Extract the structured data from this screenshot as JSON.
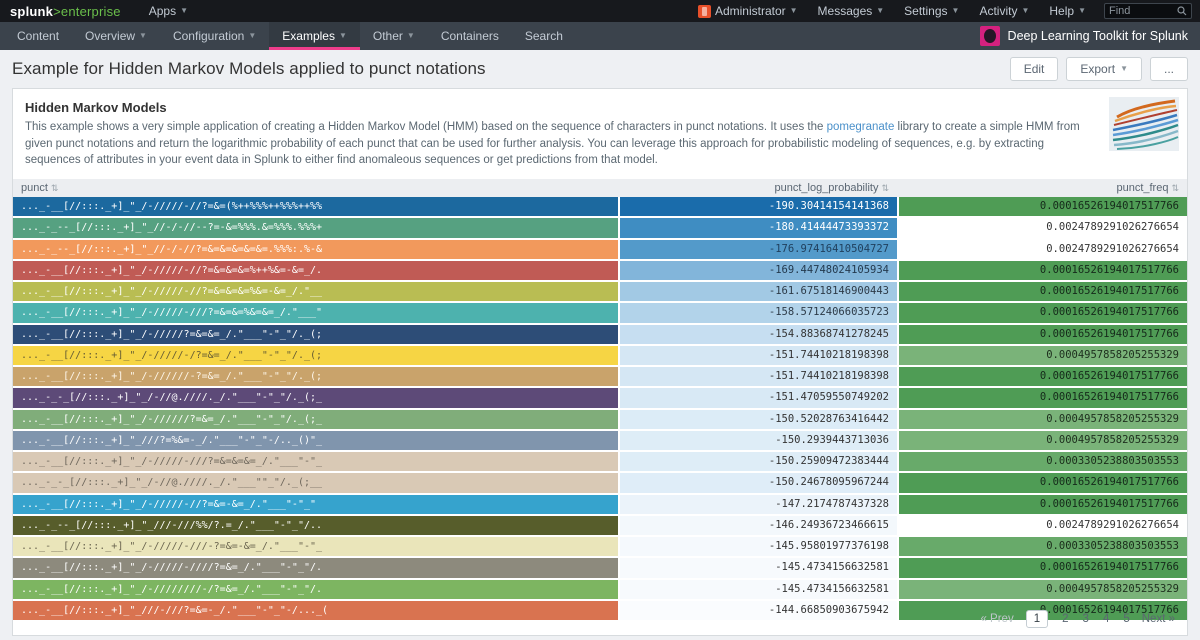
{
  "colors": {
    "accent_active_tab": "#ee3d8b",
    "logo_green": "#6abf4b",
    "link_blue": "#4a90ca",
    "topbar_bg": "#17191d",
    "appbar_bg": "#3b434c"
  },
  "topbar": {
    "logo_main": "splunk",
    "logo_sub": ">enterprise",
    "apps_label": "Apps",
    "menus": [
      {
        "label": "Administrator",
        "caret": true,
        "avatar": true
      },
      {
        "label": "Messages",
        "caret": true
      },
      {
        "label": "Settings",
        "caret": true
      },
      {
        "label": "Activity",
        "caret": true
      },
      {
        "label": "Help",
        "caret": true
      }
    ],
    "find_placeholder": "Find"
  },
  "appbar": {
    "items": [
      {
        "label": "Content",
        "caret": false,
        "active": false
      },
      {
        "label": "Overview",
        "caret": true,
        "active": false
      },
      {
        "label": "Configuration",
        "caret": true,
        "active": false
      },
      {
        "label": "Examples",
        "caret": true,
        "active": true
      },
      {
        "label": "Other",
        "caret": true,
        "active": false
      },
      {
        "label": "Containers",
        "caret": false,
        "active": false
      },
      {
        "label": "Search",
        "caret": false,
        "active": false
      }
    ],
    "app_title": "Deep Learning Toolkit for Splunk"
  },
  "pageheader": {
    "title": "Example for Hidden Markov Models applied to punct notations",
    "buttons": {
      "edit": "Edit",
      "export": "Export",
      "more": "..."
    }
  },
  "panel": {
    "heading": "Hidden Markov Models",
    "description_before_link": "This example shows a very simple application of creating a Hidden Markov Model (HMM) based on the sequence of characters in punct notations. It uses the ",
    "description_link": "pomegranate",
    "description_after_link": " library to create a simple HMM from given punct notations and return the logarithmic probability of each punct that can be used for further analysis. You can leverage this approach for probabilistic modeling of sequences, e.g. by extracting sequences of attributes in your event data in Splunk to either find anomaleous sequences or get predictions from that model."
  },
  "table": {
    "headers": [
      {
        "label": "punct",
        "sort_icon": "⇅"
      },
      {
        "label": "punct_log_probability",
        "sort_icon": "⇅"
      },
      {
        "label": "punct_freq",
        "sort_icon": "⇅"
      }
    ],
    "rows": [
      {
        "punct": "..._-__[//:::._+]_\"_/-/////-//?=&=(%++%%%++%%%++%%",
        "punct_bg": "#1c699f",
        "punct_fg": "#ffffff",
        "log_prob": "-190.30414154141368",
        "log_bg": "#1a6cab",
        "log_fg": "#ffffff",
        "freq": "0.00016526194017517766",
        "freq_bg": "#4f9c55",
        "freq_fg": "#15291a"
      },
      {
        "punct": "..._-_--_[//:::._+]_\"_//-/-//--?=-&=%%%.&=%%%.%%%+",
        "punct_bg": "#56a181",
        "punct_fg": "#ffffff",
        "log_prob": "-180.41444473393372",
        "log_bg": "#3f8dc2",
        "log_fg": "#ffffff",
        "freq": "0.0024789291026276654",
        "freq_bg": "#ffffff",
        "freq_fg": "#333333"
      },
      {
        "punct": "..._-_--_[//:::._+]_\"_//-/-//?=&=&=&=&=&=.%%%:.%-&",
        "punct_bg": "#f2995c",
        "punct_fg": "#ffffff",
        "log_prob": "-176.97416410504727",
        "log_bg": "#539aca",
        "log_fg": "#20405e",
        "freq": "0.0024789291026276654",
        "freq_bg": "#ffffff",
        "freq_fg": "#333333"
      },
      {
        "punct": "..._-__[//:::._+]_\"_/-/////-//?=&=&=&=%++%&=-&=_/.",
        "punct_bg": "#c05b55",
        "punct_fg": "#ffffff",
        "log_prob": "-169.44748024105934",
        "log_bg": "#82b5da",
        "log_fg": "#23394d",
        "freq": "0.00016526194017517766",
        "freq_bg": "#4f9c55",
        "freq_fg": "#15291a"
      },
      {
        "punct": "..._-__[//:::._+]_\"_/-/////-//?=&=&=&=%&=-&=_/.\"__",
        "punct_bg": "#b9bd53",
        "punct_fg": "#ffffff",
        "log_prob": "-161.67518146900443",
        "log_bg": "#a2c9e4",
        "log_fg": "#2c3a47",
        "freq": "0.00016526194017517766",
        "freq_bg": "#4f9c55",
        "freq_fg": "#15291a"
      },
      {
        "punct": "..._-__[//:::._+]_\"_/-/////-///?=&=&=%&=&=_/.\"___\"",
        "punct_bg": "#4db2ae",
        "punct_fg": "#ffffff",
        "log_prob": "-158.57124066035723",
        "log_bg": "#b2d3ea",
        "log_fg": "#2c3a47",
        "freq": "0.00016526194017517766",
        "freq_bg": "#4f9c55",
        "freq_fg": "#15291a"
      },
      {
        "punct": "..._-__[//:::._+]_\"_/-/////?=&=&=_/.\"___\"-\"_\"/._(;",
        "punct_bg": "#2d4d77",
        "punct_fg": "#ffffff",
        "log_prob": "-154.88368741278245",
        "log_bg": "#c6def1",
        "log_fg": "#333333",
        "freq": "0.00016526194017517766",
        "freq_bg": "#4f9c55",
        "freq_fg": "#15291a"
      },
      {
        "punct": "..._-__[//:::._+]_\"_/-/////-/?=&=_/.\"___\"-\"_\"/._(;",
        "punct_bg": "#f6d544",
        "punct_fg": "#665d33",
        "log_prob": "-151.74410218198398",
        "log_bg": "#d5e7f4",
        "log_fg": "#333333",
        "freq": "0.0004957858205255329",
        "freq_bg": "#7ab379",
        "freq_fg": "#1d2e1d"
      },
      {
        "punct": "..._-__[//:::._+]_\"_/-//////-?=&=_/.\"___\"-\"_\"/._(;",
        "punct_bg": "#c9a36b",
        "punct_fg": "#fdf6ea",
        "log_prob": "-151.74410218198398",
        "log_bg": "#d5e7f4",
        "log_fg": "#333333",
        "freq": "0.00016526194017517766",
        "freq_bg": "#4f9c55",
        "freq_fg": "#15291a"
      },
      {
        "punct": "..._-_-_[//:::._+]_\"_/-//@.////._/.\"___\"-\"_\"/._(;_",
        "punct_bg": "#5d4a78",
        "punct_fg": "#ffffff",
        "log_prob": "-151.47059550749202",
        "log_bg": "#d8e9f5",
        "log_fg": "#333333",
        "freq": "0.00016526194017517766",
        "freq_bg": "#4f9c55",
        "freq_fg": "#15291a"
      },
      {
        "punct": "..._-__[//:::._+]_\"_/-//////?=&=_/.\"___\"-\"_\"/._(;_",
        "punct_bg": "#80ad7a",
        "punct_fg": "#ffffff",
        "log_prob": "-150.52028763416442",
        "log_bg": "#dcecf7",
        "log_fg": "#333333",
        "freq": "0.0004957858205255329",
        "freq_bg": "#7ab379",
        "freq_fg": "#1d2e1d"
      },
      {
        "punct": "..._-__[//:::._+]_\"_///?=%&=-_/.\"___\"-\"_\"-/.._()\"_",
        "punct_bg": "#8095ad",
        "punct_fg": "#ffffff",
        "log_prob": "-150.2939443713036",
        "log_bg": "#deedf7",
        "log_fg": "#333333",
        "freq": "0.0004957858205255329",
        "freq_bg": "#7ab379",
        "freq_fg": "#1d2e1d"
      },
      {
        "punct": "..._-__[//:::._+]_\"_/-/////-///?=&=&=&=_/.\"___\"-\"_",
        "punct_bg": "#d9c9b5",
        "punct_fg": "#6e675c",
        "log_prob": "-150.25909472383444",
        "log_bg": "#deedf7",
        "log_fg": "#333333",
        "freq": "0.0003305238803503553",
        "freq_bg": "#68aa6a",
        "freq_fg": "#1a2c1a"
      },
      {
        "punct": "..._-_-_[//:::._+]_\"_/-//@.////._/.\"___\"\"_\"/._(;__",
        "punct_bg": "#d9c9b5",
        "punct_fg": "#6e675c",
        "log_prob": "-150.24678095967244",
        "log_bg": "#dfedf8",
        "log_fg": "#333333",
        "freq": "0.00016526194017517766",
        "freq_bg": "#4f9c55",
        "freq_fg": "#15291a"
      },
      {
        "punct": "..._-__[//:::._+]_\"_/-/////-//?=&=-&=_/.\"___\"-\"_\"",
        "punct_bg": "#36a3cd",
        "punct_fg": "#ffffff",
        "log_prob": "-147.2174787437328",
        "log_bg": "#ebf3fa",
        "log_fg": "#333333",
        "freq": "0.00016526194017517766",
        "freq_bg": "#4f9c55",
        "freq_fg": "#15291a"
      },
      {
        "punct": "..._-_--_[//:::._+]_\"_///-///%%/?.=_/.\"___\"-\"_\"/..",
        "punct_bg": "#575d2b",
        "punct_fg": "#ffffff",
        "log_prob": "-146.24936723466615",
        "log_bg": "#f3f8fc",
        "log_fg": "#333333",
        "freq": "0.0024789291026276654",
        "freq_bg": "#ffffff",
        "freq_fg": "#333333"
      },
      {
        "punct": "..._-__[//:::._+]_\"_/-/////-///-?=&=-&=_/.\"___\"-\"_",
        "punct_bg": "#eae5ba",
        "punct_fg": "#6b6550",
        "log_prob": "-145.95801977376198",
        "log_bg": "#f5f9fd",
        "log_fg": "#333333",
        "freq": "0.0003305238803503553",
        "freq_bg": "#68aa6a",
        "freq_fg": "#1a2c1a"
      },
      {
        "punct": "..._-__[//:::._+]_\"_/-/////-////?=&=_/.\"___\"-\"_\"/.",
        "punct_bg": "#8d8a7d",
        "punct_fg": "#ffffff",
        "log_prob": "-145.4734156632581",
        "log_bg": "#f7fafd",
        "log_fg": "#333333",
        "freq": "0.00016526194017517766",
        "freq_bg": "#4f9c55",
        "freq_fg": "#15291a"
      },
      {
        "punct": "..._-__[//:::._+]_\"_/-////////-/?=&=_/.\"___\"-\"_\"/.",
        "punct_bg": "#7db561",
        "punct_fg": "#ffffff",
        "log_prob": "-145.4734156632581",
        "log_bg": "#f7fafd",
        "log_fg": "#333333",
        "freq": "0.0004957858205255329",
        "freq_bg": "#7ab379",
        "freq_fg": "#1d2e1d"
      },
      {
        "punct": "..._-__[//:::._+]_\"_///-///?=&=-_/.\"___\"-\"_\"-/..._(",
        "punct_bg": "#d97350",
        "punct_fg": "#ffffff",
        "log_prob": "-144.66850903675942",
        "log_bg": "#fafcfe",
        "log_fg": "#333333",
        "freq": "0.00016526194017517766",
        "freq_bg": "#4f9c55",
        "freq_fg": "#15291a"
      }
    ]
  },
  "pagination": {
    "prev_label": "« Prev",
    "pages": [
      "1",
      "2",
      "3",
      "4",
      "5"
    ],
    "current_page": "1",
    "next_label": "Next »"
  }
}
